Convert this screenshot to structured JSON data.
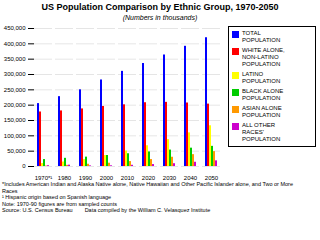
{
  "chart_data": {
    "type": "bar",
    "title": "US Population Comparison by Ethnic Group, 1970-2050",
    "subtitle": "(Numbers in thousands)",
    "categories": [
      "1970*¹",
      "1980",
      "1990",
      "2000",
      "2010",
      "2020",
      "2030",
      "2040",
      "2050"
    ],
    "series": [
      {
        "name": "TOTAL\nPOPULATION",
        "color": "#0000FF",
        "values": [
          205052,
          227726,
          249983,
          282125,
          310233,
          335805,
          363584,
          391946,
          419854
        ]
      },
      {
        "name": "WHITE ALONE,\nNON-LATINO\nPOPULATION",
        "color": "#FF0000",
        "values": [
          177749,
          181185,
          187759,
          195729,
          201112,
          207901,
          209176,
          207052,
          203441
        ]
      },
      {
        "name": "LATINO\nPOPULATION",
        "color": "#FFFF00",
        "values": [
          9590,
          14609,
          22354,
          35622,
          50478,
          67631,
          87585,
          109640,
          132792
        ]
      },
      {
        "name": "BLACK ALONE\nPOPULATION",
        "color": "#00CC00",
        "values": [
          22580,
          26683,
          30517,
          35818,
          41538,
          47432,
          53555,
          59775,
          65697
        ]
      },
      {
        "name": "ASIAN ALONE\nPOPULATION",
        "color": "#FF9900",
        "values": [
          1369,
          3726,
          7274,
          10684,
          16010,
          22578,
          30177,
          38647,
          48508
        ]
      },
      {
        "name": "ALL OTHER\nRACES'\nPOPULATION",
        "color": "#CC00CC",
        "values": [
          2664,
          4278,
          2079,
          2272,
          3895,
          6261,
          9090,
          13832,
          18406
        ]
      }
    ],
    "ylim": [
      0,
      450000
    ],
    "yticks": [
      0,
      {
        "value": 50000,
        "label": "50,000"
      },
      {
        "value": 100000,
        "label": "100,000"
      },
      {
        "value": 150000,
        "label": "150,000"
      },
      {
        "value": 200000,
        "label": "200,000"
      },
      {
        "value": 250000,
        "label": "250,000"
      },
      {
        "value": 300000,
        "label": "300,000"
      },
      {
        "value": 350000,
        "label": "350,000"
      },
      {
        "value": 400000,
        "label": "400,000"
      },
      {
        "value": 450000,
        "label": "450,000"
      }
    ],
    "grid": true,
    "legend": "right",
    "annotations": [
      "*Includes American Indian and Alaska Native alone, Native Hawaiian and Other Pacific Islander alone, and Two or More\nRaces",
      "¹ Hispanic origin based on Spanish language",
      "Note: 1970-90 figures are from sampled counts",
      "Source: U.S. Census Bureau",
      "Data compiled by the William C. Velasquez Institute"
    ]
  }
}
